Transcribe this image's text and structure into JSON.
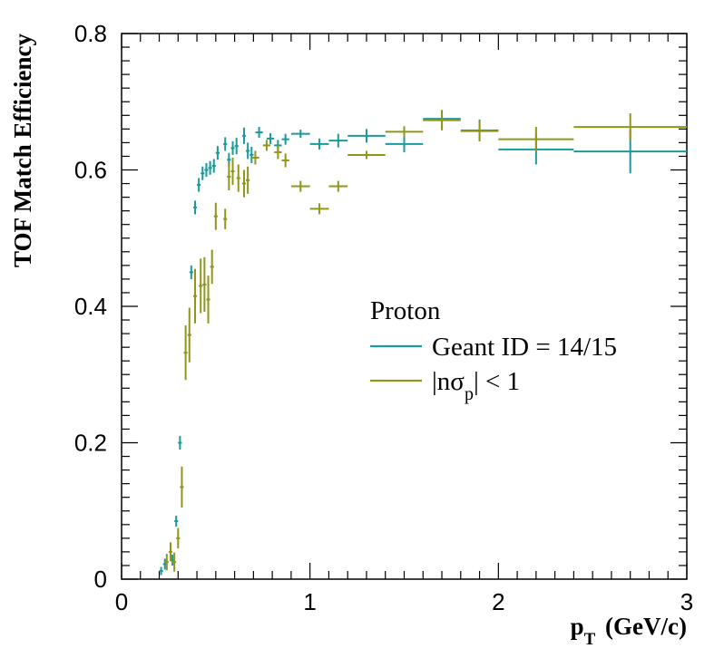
{
  "chart_data": {
    "type": "scatter",
    "xlabel": "p_T (GeV/c)",
    "ylabel": "TOF Match Efficiency",
    "xlim": [
      0,
      3
    ],
    "ylim": [
      0,
      0.8
    ],
    "x_ticks": [
      "0",
      "1",
      "2",
      "3"
    ],
    "y_ticks": [
      "0",
      "0.2",
      "0.4",
      "0.6",
      "0.8"
    ],
    "grid": false,
    "legend": {
      "title": "Proton",
      "placement": "center-right",
      "entries": [
        {
          "label": "Geant ID = 14/15",
          "color": "#1a9a9a"
        },
        {
          "label": "|nσ_p| < 1",
          "color": "#8f961a"
        }
      ]
    },
    "series": [
      {
        "name": "Geant ID = 14/15",
        "color": "#1a9a9a",
        "points": [
          {
            "x": 0.21,
            "y": 0.012,
            "xerr": 0.01,
            "yerr": 0.006
          },
          {
            "x": 0.23,
            "y": 0.022,
            "xerr": 0.01,
            "yerr": 0.008
          },
          {
            "x": 0.27,
            "y": 0.028,
            "xerr": 0.01,
            "yerr": 0.008
          },
          {
            "x": 0.29,
            "y": 0.085,
            "xerr": 0.01,
            "yerr": 0.008
          },
          {
            "x": 0.31,
            "y": 0.2,
            "xerr": 0.01,
            "yerr": 0.01
          },
          {
            "x": 0.37,
            "y": 0.45,
            "xerr": 0.01,
            "yerr": 0.01
          },
          {
            "x": 0.39,
            "y": 0.545,
            "xerr": 0.01,
            "yerr": 0.01
          },
          {
            "x": 0.41,
            "y": 0.578,
            "xerr": 0.01,
            "yerr": 0.01
          },
          {
            "x": 0.43,
            "y": 0.595,
            "xerr": 0.01,
            "yerr": 0.01
          },
          {
            "x": 0.45,
            "y": 0.6,
            "xerr": 0.01,
            "yerr": 0.01
          },
          {
            "x": 0.47,
            "y": 0.603,
            "xerr": 0.01,
            "yerr": 0.01
          },
          {
            "x": 0.49,
            "y": 0.606,
            "xerr": 0.01,
            "yerr": 0.01
          },
          {
            "x": 0.51,
            "y": 0.625,
            "xerr": 0.01,
            "yerr": 0.01
          },
          {
            "x": 0.55,
            "y": 0.638,
            "xerr": 0.01,
            "yerr": 0.01
          },
          {
            "x": 0.57,
            "y": 0.615,
            "xerr": 0.01,
            "yerr": 0.01
          },
          {
            "x": 0.59,
            "y": 0.632,
            "xerr": 0.01,
            "yerr": 0.01
          },
          {
            "x": 0.61,
            "y": 0.635,
            "xerr": 0.01,
            "yerr": 0.012
          },
          {
            "x": 0.65,
            "y": 0.65,
            "xerr": 0.01,
            "yerr": 0.012
          },
          {
            "x": 0.67,
            "y": 0.628,
            "xerr": 0.01,
            "yerr": 0.012
          },
          {
            "x": 0.69,
            "y": 0.622,
            "xerr": 0.01,
            "yerr": 0.012
          },
          {
            "x": 0.73,
            "y": 0.655,
            "xerr": 0.02,
            "yerr": 0.008
          },
          {
            "x": 0.79,
            "y": 0.646,
            "xerr": 0.02,
            "yerr": 0.008
          },
          {
            "x": 0.83,
            "y": 0.636,
            "xerr": 0.02,
            "yerr": 0.008
          },
          {
            "x": 0.87,
            "y": 0.645,
            "xerr": 0.02,
            "yerr": 0.008
          },
          {
            "x": 0.95,
            "y": 0.653,
            "xerr": 0.05,
            "yerr": 0.006
          },
          {
            "x": 1.05,
            "y": 0.638,
            "xerr": 0.05,
            "yerr": 0.008
          },
          {
            "x": 1.15,
            "y": 0.643,
            "xerr": 0.05,
            "yerr": 0.01
          },
          {
            "x": 1.3,
            "y": 0.65,
            "xerr": 0.1,
            "yerr": 0.01
          },
          {
            "x": 1.5,
            "y": 0.638,
            "xerr": 0.1,
            "yerr": 0.012
          },
          {
            "x": 1.7,
            "y": 0.675,
            "xerr": 0.1,
            "yerr": 0.012
          },
          {
            "x": 1.9,
            "y": 0.658,
            "xerr": 0.1,
            "yerr": 0.016
          },
          {
            "x": 2.2,
            "y": 0.63,
            "xerr": 0.2,
            "yerr": 0.022
          },
          {
            "x": 2.7,
            "y": 0.627,
            "xerr": 0.3,
            "yerr": 0.032
          }
        ]
      },
      {
        "name": "|nσ_p| < 1",
        "color": "#8f961a",
        "points": [
          {
            "x": 0.24,
            "y": 0.025,
            "xerr": 0.01,
            "yerr": 0.012
          },
          {
            "x": 0.26,
            "y": 0.04,
            "xerr": 0.01,
            "yerr": 0.014
          },
          {
            "x": 0.28,
            "y": 0.025,
            "xerr": 0.01,
            "yerr": 0.014
          },
          {
            "x": 0.3,
            "y": 0.06,
            "xerr": 0.01,
            "yerr": 0.015
          },
          {
            "x": 0.32,
            "y": 0.135,
            "xerr": 0.01,
            "yerr": 0.03
          },
          {
            "x": 0.34,
            "y": 0.332,
            "xerr": 0.01,
            "yerr": 0.04
          },
          {
            "x": 0.36,
            "y": 0.358,
            "xerr": 0.01,
            "yerr": 0.04
          },
          {
            "x": 0.39,
            "y": 0.415,
            "xerr": 0.01,
            "yerr": 0.04
          },
          {
            "x": 0.42,
            "y": 0.43,
            "xerr": 0.01,
            "yerr": 0.04
          },
          {
            "x": 0.44,
            "y": 0.432,
            "xerr": 0.01,
            "yerr": 0.04
          },
          {
            "x": 0.46,
            "y": 0.41,
            "xerr": 0.01,
            "yerr": 0.035
          },
          {
            "x": 0.48,
            "y": 0.458,
            "xerr": 0.01,
            "yerr": 0.025
          },
          {
            "x": 0.5,
            "y": 0.532,
            "xerr": 0.01,
            "yerr": 0.02
          },
          {
            "x": 0.55,
            "y": 0.528,
            "xerr": 0.01,
            "yerr": 0.015
          },
          {
            "x": 0.57,
            "y": 0.59,
            "xerr": 0.01,
            "yerr": 0.02
          },
          {
            "x": 0.59,
            "y": 0.598,
            "xerr": 0.01,
            "yerr": 0.02
          },
          {
            "x": 0.62,
            "y": 0.588,
            "xerr": 0.01,
            "yerr": 0.02
          },
          {
            "x": 0.65,
            "y": 0.58,
            "xerr": 0.01,
            "yerr": 0.02
          },
          {
            "x": 0.67,
            "y": 0.585,
            "xerr": 0.01,
            "yerr": 0.02
          },
          {
            "x": 0.71,
            "y": 0.618,
            "xerr": 0.02,
            "yerr": 0.01
          },
          {
            "x": 0.77,
            "y": 0.636,
            "xerr": 0.02,
            "yerr": 0.008
          },
          {
            "x": 0.83,
            "y": 0.626,
            "xerr": 0.02,
            "yerr": 0.01
          },
          {
            "x": 0.87,
            "y": 0.614,
            "xerr": 0.02,
            "yerr": 0.01
          },
          {
            "x": 0.95,
            "y": 0.576,
            "xerr": 0.05,
            "yerr": 0.008
          },
          {
            "x": 1.05,
            "y": 0.543,
            "xerr": 0.05,
            "yerr": 0.008
          },
          {
            "x": 1.15,
            "y": 0.576,
            "xerr": 0.05,
            "yerr": 0.008
          },
          {
            "x": 1.3,
            "y": 0.622,
            "xerr": 0.1,
            "yerr": 0.006
          },
          {
            "x": 1.5,
            "y": 0.656,
            "xerr": 0.1,
            "yerr": 0.008
          },
          {
            "x": 1.7,
            "y": 0.673,
            "xerr": 0.1,
            "yerr": 0.015
          },
          {
            "x": 1.9,
            "y": 0.657,
            "xerr": 0.1,
            "yerr": 0.015
          },
          {
            "x": 2.2,
            "y": 0.645,
            "xerr": 0.2,
            "yerr": 0.018
          },
          {
            "x": 2.7,
            "y": 0.663,
            "xerr": 0.3,
            "yerr": 0.02
          }
        ]
      }
    ]
  }
}
